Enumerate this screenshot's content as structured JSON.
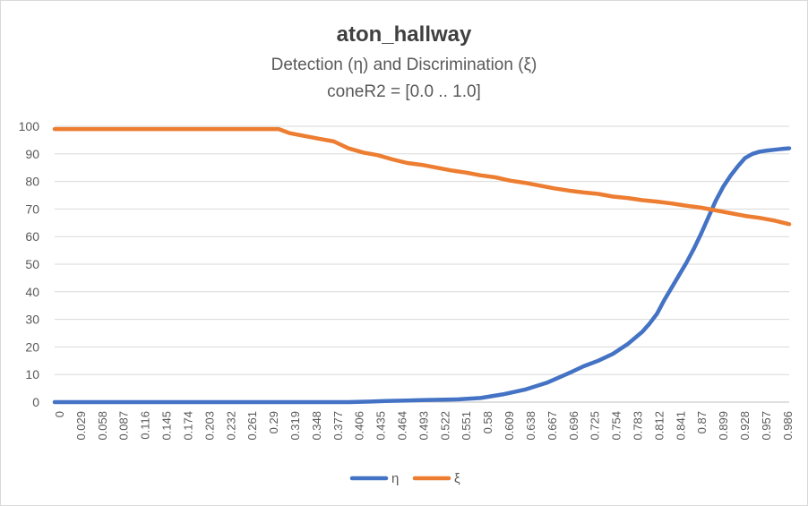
{
  "chart_data": {
    "type": "line",
    "title": "aton_hallway",
    "subtitles": [
      "Detection (η) and Discrimination (ξ)",
      "coneR2 = [0.0 .. 1.0]"
    ],
    "xlabel": "",
    "ylabel": "",
    "ylim": [
      0,
      100
    ],
    "y_ticks": [
      0,
      10,
      20,
      30,
      40,
      50,
      60,
      70,
      80,
      90,
      100
    ],
    "x_range": [
      0,
      1.0
    ],
    "x_tick_labels": [
      "0",
      "0.029",
      "0.058",
      "0.087",
      "0.116",
      "0.145",
      "0.174",
      "0.203",
      "0.232",
      "0.261",
      "0.29",
      "0.319",
      "0.348",
      "0.377",
      "0.406",
      "0.435",
      "0.464",
      "0.493",
      "0.522",
      "0.551",
      "0.58",
      "0.609",
      "0.638",
      "0.667",
      "0.696",
      "0.725",
      "0.754",
      "0.783",
      "0.812",
      "0.841",
      "0.87",
      "0.899",
      "0.928",
      "0.957",
      "0.986"
    ],
    "grid": true,
    "legend_position": "bottom",
    "series": [
      {
        "name": "η",
        "color": "#4472c4",
        "x": [
          0,
          0.05,
          0.1,
          0.2,
          0.3,
          0.35,
          0.4,
          0.43,
          0.45,
          0.48,
          0.5,
          0.55,
          0.58,
          0.61,
          0.64,
          0.67,
          0.7,
          0.72,
          0.74,
          0.76,
          0.78,
          0.8,
          0.81,
          0.82,
          0.83,
          0.84,
          0.85,
          0.86,
          0.87,
          0.88,
          0.89,
          0.9,
          0.91,
          0.92,
          0.93,
          0.94,
          0.95,
          0.96,
          0.97,
          0.98,
          0.99,
          1.0
        ],
        "y": [
          0,
          0,
          0,
          0,
          0,
          0,
          0,
          0.2,
          0.4,
          0.6,
          0.7,
          1,
          1.5,
          2.8,
          4.5,
          7,
          10.5,
          13,
          15,
          17.5,
          21,
          25.5,
          28.5,
          32,
          37,
          41.5,
          46,
          50.5,
          55.5,
          61,
          67,
          73,
          78,
          82,
          85.5,
          88.5,
          90,
          90.8,
          91.2,
          91.5,
          91.8,
          92
        ]
      },
      {
        "name": "ξ",
        "color": "#ed7d31",
        "x": [
          0,
          0.05,
          0.1,
          0.15,
          0.2,
          0.25,
          0.3,
          0.305,
          0.32,
          0.34,
          0.36,
          0.38,
          0.4,
          0.42,
          0.44,
          0.46,
          0.48,
          0.5,
          0.52,
          0.54,
          0.56,
          0.58,
          0.6,
          0.62,
          0.64,
          0.66,
          0.68,
          0.7,
          0.72,
          0.74,
          0.76,
          0.78,
          0.8,
          0.82,
          0.84,
          0.86,
          0.88,
          0.9,
          0.92,
          0.94,
          0.96,
          0.98,
          1.0
        ],
        "y": [
          99,
          99,
          99,
          99,
          99,
          99,
          99,
          99,
          97.5,
          96.5,
          95.5,
          94.5,
          92,
          90.5,
          89.5,
          88,
          86.7,
          86,
          85,
          84,
          83.2,
          82.2,
          81.5,
          80.3,
          79.5,
          78.5,
          77.5,
          76.7,
          76,
          75.5,
          74.5,
          74,
          73.2,
          72.7,
          72,
          71.2,
          70.5,
          69.5,
          68.5,
          67.5,
          66.8,
          65.8,
          64.5
        ]
      }
    ]
  }
}
